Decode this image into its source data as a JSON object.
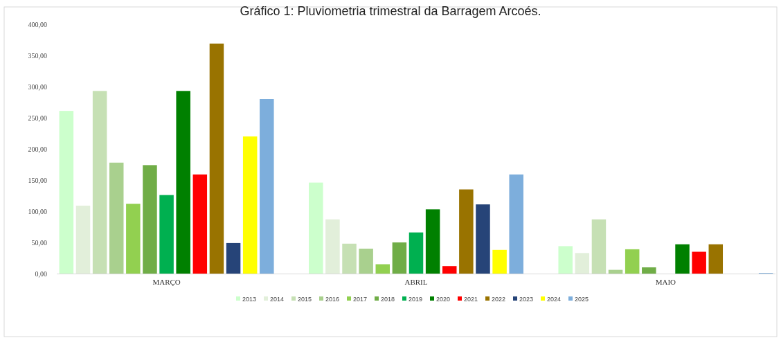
{
  "chart_data": {
    "type": "bar",
    "title": "Gráfico 1: Pluviometria trimestral da Barragem Arcoés.",
    "categories": [
      "MARÇO",
      "ABRIL",
      "MAIO"
    ],
    "series": [
      {
        "name": "2013",
        "color": "#ccffcc",
        "values": [
          261,
          146,
          44
        ]
      },
      {
        "name": "2014",
        "color": "#e2efda",
        "values": [
          109,
          87,
          33
        ]
      },
      {
        "name": "2015",
        "color": "#c6e0b4",
        "values": [
          293,
          48,
          87
        ]
      },
      {
        "name": "2016",
        "color": "#a9d08e",
        "values": [
          178,
          40,
          6
        ]
      },
      {
        "name": "2017",
        "color": "#92d050",
        "values": [
          112,
          15,
          39
        ]
      },
      {
        "name": "2018",
        "color": "#70ad47",
        "values": [
          174,
          50,
          10
        ]
      },
      {
        "name": "2019",
        "color": "#00b050",
        "values": [
          126,
          66,
          null
        ]
      },
      {
        "name": "2020",
        "color": "#008000",
        "values": [
          293,
          103,
          47
        ]
      },
      {
        "name": "2021",
        "color": "#ff0000",
        "values": [
          159,
          12,
          35
        ]
      },
      {
        "name": "2022",
        "color": "#997300",
        "values": [
          369,
          135,
          47
        ]
      },
      {
        "name": "2023",
        "color": "#264478",
        "values": [
          49,
          111,
          null
        ]
      },
      {
        "name": "2024",
        "color": "#ffff00",
        "values": [
          220,
          38,
          null
        ]
      },
      {
        "name": "2025",
        "color": "#7daedc",
        "values": [
          280,
          159,
          1
        ]
      }
    ],
    "ylim": [
      0,
      400
    ],
    "yticks": [
      {
        "value": 0,
        "label": "0,00"
      },
      {
        "value": 50,
        "label": "50,00"
      },
      {
        "value": 100,
        "label": "100,00"
      },
      {
        "value": 150,
        "label": "150,00"
      },
      {
        "value": 200,
        "label": "200,00"
      },
      {
        "value": 250,
        "label": "250,00"
      },
      {
        "value": 300,
        "label": "300,00"
      },
      {
        "value": 350,
        "label": "350,00"
      },
      {
        "value": 400,
        "label": "400,00"
      }
    ],
    "grid": false,
    "legend": "bottom"
  }
}
